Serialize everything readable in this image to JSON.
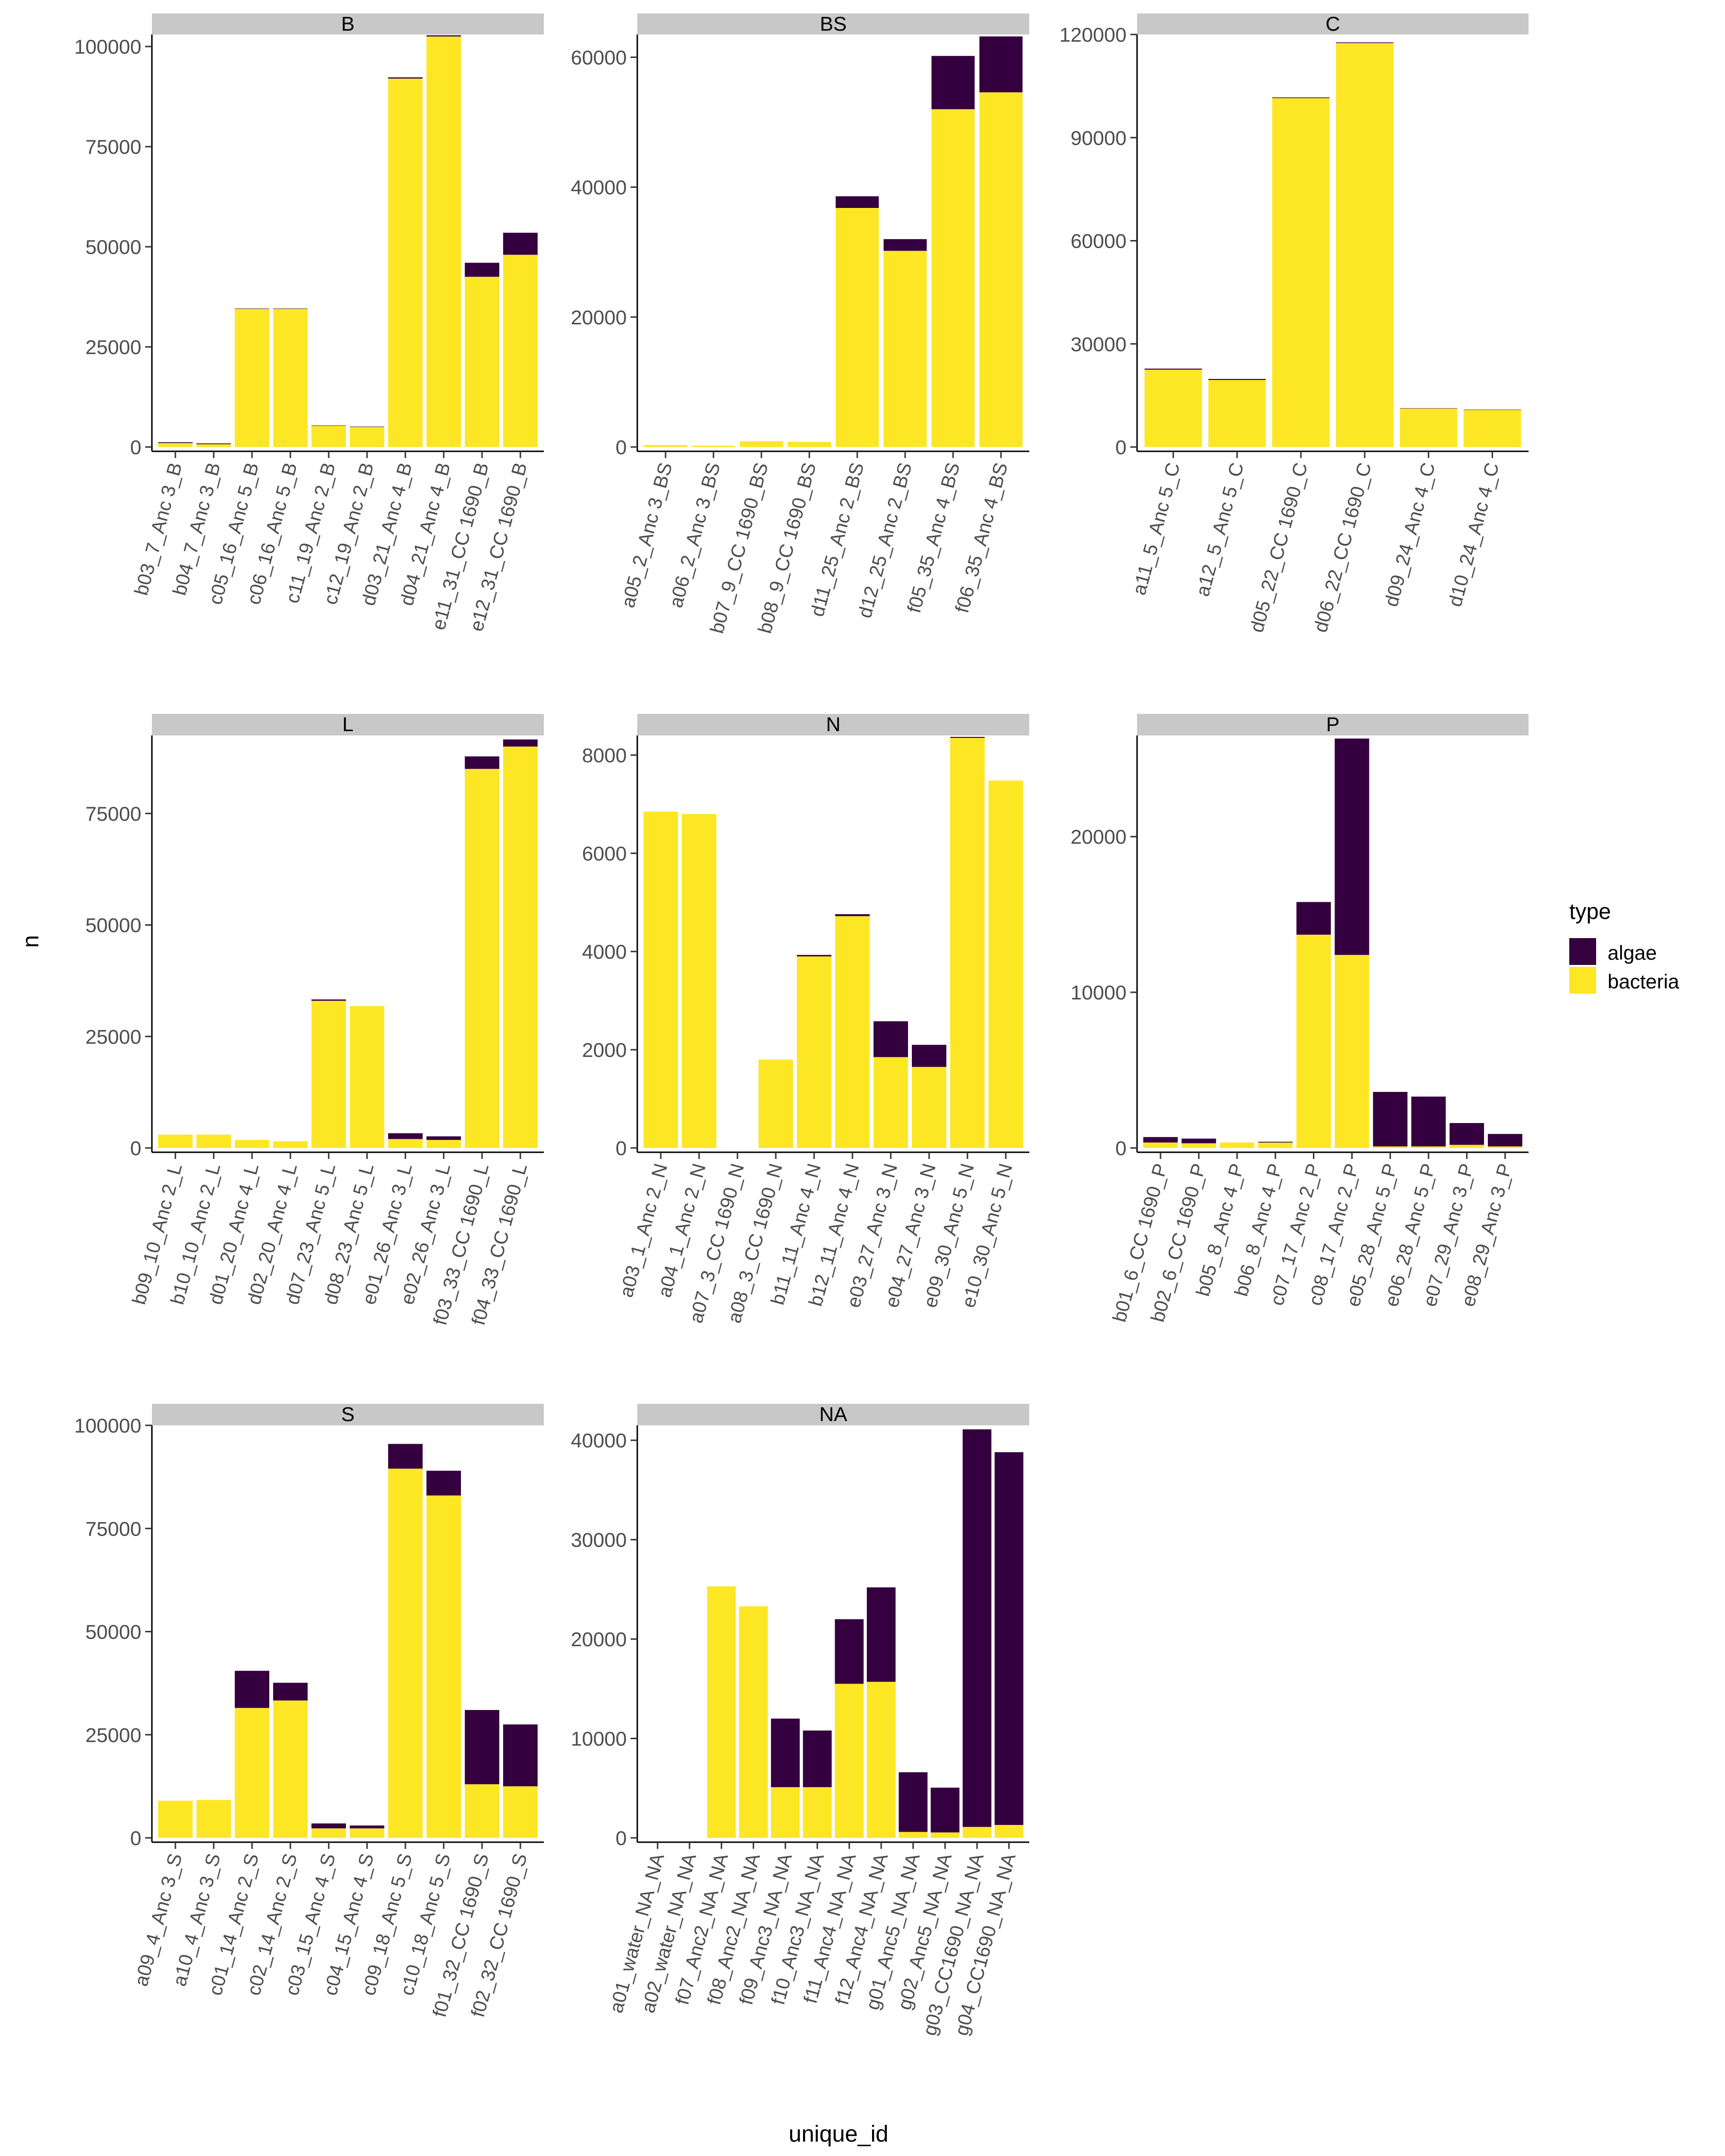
{
  "chart_data": {
    "type": "bar",
    "stacked": true,
    "xlabel": "unique_id",
    "ylabel": "n",
    "legend": {
      "title": "type",
      "position": "right",
      "entries": [
        {
          "name": "algae",
          "color": "#35003f"
        },
        {
          "name": "bacteria",
          "color": "#fde725"
        }
      ]
    },
    "facet_strip_color": "#c8c8c8",
    "panels": [
      {
        "title": "B",
        "ylim": [
          0,
          103000
        ],
        "yticks": [
          0,
          25000,
          50000,
          75000,
          100000
        ],
        "categories": [
          "b03_7_Anc 3_B",
          "b04_7_Anc 3_B",
          "c05_16_Anc 5_B",
          "c06_16_Anc 5_B",
          "c11_19_Anc 2_B",
          "c12_19_Anc 2_B",
          "d03_21_Anc 4_B",
          "d04_21_Anc 4_B",
          "e11_31_CC 1690_B",
          "e12_31_CC 1690_B"
        ],
        "series": [
          {
            "name": "bacteria",
            "values": [
              1000,
              700,
              34500,
              34500,
              5300,
              5000,
              92000,
              102500,
              42500,
              48000
            ]
          },
          {
            "name": "algae",
            "values": [
              200,
              200,
              100,
              100,
              100,
              100,
              300,
              300,
              3500,
              5500
            ]
          }
        ]
      },
      {
        "title": "BS",
        "ylim": [
          0,
          63500
        ],
        "yticks": [
          0,
          20000,
          40000,
          60000
        ],
        "categories": [
          "a05_2_Anc 3_BS",
          "a06_2_Anc 3_BS",
          "b07_9_CC 1690_BS",
          "b08_9_CC 1690_BS",
          "d11_25_Anc 2_BS",
          "d12_25_Anc 2_BS",
          "f05_35_Anc 4_BS",
          "f06_35_Anc 4_BS"
        ],
        "series": [
          {
            "name": "bacteria",
            "values": [
              300,
              200,
              900,
              800,
              36800,
              30200,
              52000,
              54600
            ]
          },
          {
            "name": "algae",
            "values": [
              0,
              0,
              0,
              0,
              1800,
              1800,
              8200,
              8600
            ]
          }
        ]
      },
      {
        "title": "C",
        "ylim": [
          0,
          120000
        ],
        "yticks": [
          0,
          30000,
          60000,
          90000,
          120000
        ],
        "categories": [
          "a11_5_Anc 5_C",
          "a12_5_Anc 5_C",
          "d05_22_CC 1690_C",
          "d06_22_CC 1690_C",
          "d09_24_Anc 4_C",
          "d10_24_Anc 4_C"
        ],
        "series": [
          {
            "name": "bacteria",
            "values": [
              22500,
              19500,
              101500,
              117500,
              11200,
              10800
            ]
          },
          {
            "name": "algae",
            "values": [
              300,
              300,
              200,
              200,
              100,
              100
            ]
          }
        ]
      },
      {
        "title": "L",
        "ylim": [
          0,
          92500
        ],
        "yticks": [
          0,
          25000,
          50000,
          75000
        ],
        "categories": [
          "b09_10_Anc 2_L",
          "b10_10_Anc 2_L",
          "d01_20_Anc 4_L",
          "d02_20_Anc 4_L",
          "d07_23_Anc 5_L",
          "d08_23_Anc 5_L",
          "e01_26_Anc 3_L",
          "e02_26_Anc 3_L",
          "f03_33_CC 1690_L",
          "f04_33_CC 1690_L"
        ],
        "series": [
          {
            "name": "bacteria",
            "values": [
              3000,
              3000,
              1800,
              1500,
              33000,
              31800,
              2000,
              1800,
              85000,
              90000
            ]
          },
          {
            "name": "algae",
            "values": [
              0,
              0,
              0,
              0,
              300,
              0,
              1300,
              800,
              2800,
              1600
            ]
          }
        ]
      },
      {
        "title": "N",
        "ylim": [
          0,
          8400
        ],
        "yticks": [
          0,
          2000,
          4000,
          6000,
          8000
        ],
        "categories": [
          "a03_1_Anc 2_N",
          "a04_1_Anc 2_N",
          "a07_3_CC 1690_N",
          "a08_3_CC 1690_N",
          "b11_11_Anc 4_N",
          "b12_11_Anc 4_N",
          "e03_27_Anc 3_N",
          "e04_27_Anc 3_N",
          "e09_30_Anc 5_N",
          "e10_30_Anc 5_N"
        ],
        "series": [
          {
            "name": "bacteria",
            "values": [
              6850,
              6800,
              0,
              1800,
              3900,
              4720,
              1850,
              1650,
              8350,
              7480
            ]
          },
          {
            "name": "algae",
            "values": [
              0,
              0,
              0,
              0,
              30,
              40,
              730,
              450,
              20,
              0
            ]
          }
        ]
      },
      {
        "title": "P",
        "ylim": [
          0,
          26500
        ],
        "yticks": [
          0,
          10000,
          20000
        ],
        "categories": [
          "b01_6_CC 1690_P",
          "b02_6_CC 1690_P",
          "b05_8_Anc 4_P",
          "b06_8_Anc 4_P",
          "c07_17_Anc 2_P",
          "c08_17_Anc 2_P",
          "e05_28_Anc 5_P",
          "e06_28_Anc 5_P",
          "e07_29_Anc 3_P",
          "e08_29_Anc 3_P"
        ],
        "series": [
          {
            "name": "bacteria",
            "values": [
              350,
              300,
              350,
              350,
              13700,
              12400,
              100,
              100,
              200,
              100
            ]
          },
          {
            "name": "algae",
            "values": [
              350,
              300,
              0,
              50,
              2100,
              13900,
              3500,
              3200,
              1400,
              800
            ]
          }
        ]
      },
      {
        "title": "S",
        "ylim": [
          0,
          100000
        ],
        "yticks": [
          0,
          25000,
          50000,
          75000,
          100000
        ],
        "categories": [
          "a09_4_Anc 3_S",
          "a10_4_Anc 3_S",
          "c01_14_Anc 2_S",
          "c02_14_Anc 2_S",
          "c03_15_Anc 4_S",
          "c04_15_Anc 4_S",
          "c09_18_Anc 5_S",
          "c10_18_Anc 5_S",
          "f01_32_CC 1690_S",
          "f02_32_CC 1690_S"
        ],
        "series": [
          {
            "name": "bacteria",
            "values": [
              9000,
              9200,
              31500,
              33300,
              2300,
              2300,
              89500,
              83000,
              13000,
              12500
            ]
          },
          {
            "name": "algae",
            "values": [
              0,
              0,
              9000,
              4300,
              1200,
              700,
              6000,
              6000,
              18000,
              15000
            ]
          }
        ]
      },
      {
        "title": "NA",
        "ylim": [
          0,
          41500
        ],
        "yticks": [
          0,
          10000,
          20000,
          30000,
          40000
        ],
        "categories": [
          "a01_water_NA_NA",
          "a02_water_NA_NA",
          "f07_Anc2_NA_NA",
          "f08_Anc2_NA_NA",
          "f09_Anc3_NA_NA",
          "f10_Anc3_NA_NA",
          "f11_Anc4_NA_NA",
          "f12_Anc4_NA_NA",
          "g01_Anc5_NA_NA",
          "g02_Anc5_NA_NA",
          "g03_CC1690_NA_NA",
          "g04_CC1690_NA_NA"
        ],
        "series": [
          {
            "name": "bacteria",
            "values": [
              0,
              0,
              25300,
              23300,
              5100,
              5100,
              15500,
              15700,
              600,
              550,
              1100,
              1300
            ]
          },
          {
            "name": "algae",
            "values": [
              0,
              0,
              0,
              0,
              6900,
              5700,
              6500,
              9500,
              6000,
              4500,
              40000,
              37500
            ]
          }
        ]
      }
    ]
  }
}
